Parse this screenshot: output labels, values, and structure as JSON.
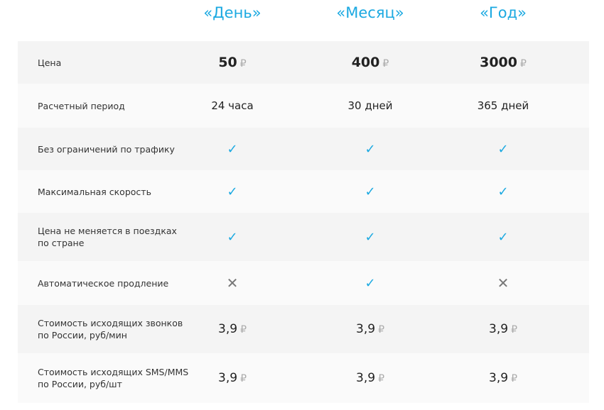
{
  "plans": [
    "«День»",
    "«Месяц»",
    "«Год»"
  ],
  "currency": "₽",
  "accent_color": "#1ba9e1",
  "rows": [
    {
      "label": "Цена",
      "type": "price",
      "values": [
        "50",
        "400",
        "3000"
      ]
    },
    {
      "label": "Расчетный период",
      "type": "text",
      "values": [
        "24 часа",
        "30 дней",
        "365 дней"
      ]
    },
    {
      "label": "Без ограничений по трафику",
      "type": "bool",
      "values": [
        true,
        true,
        true
      ]
    },
    {
      "label": "Максимальная скорость",
      "type": "bool",
      "values": [
        true,
        true,
        true
      ]
    },
    {
      "label": "Цена не меняется в поездках\nпо стране",
      "type": "bool",
      "values": [
        true,
        true,
        true
      ]
    },
    {
      "label": "Автоматическое продление",
      "type": "bool",
      "values": [
        false,
        true,
        false
      ]
    },
    {
      "label": "Стоимость исходящих звонков\nпо России, руб/мин",
      "type": "small",
      "values": [
        "3,9",
        "3,9",
        "3,9"
      ]
    },
    {
      "label": "Стоимость исходящих SMS/MMS\nпо России, руб/шт",
      "type": "small",
      "values": [
        "3,9",
        "3,9",
        "3,9"
      ]
    }
  ]
}
